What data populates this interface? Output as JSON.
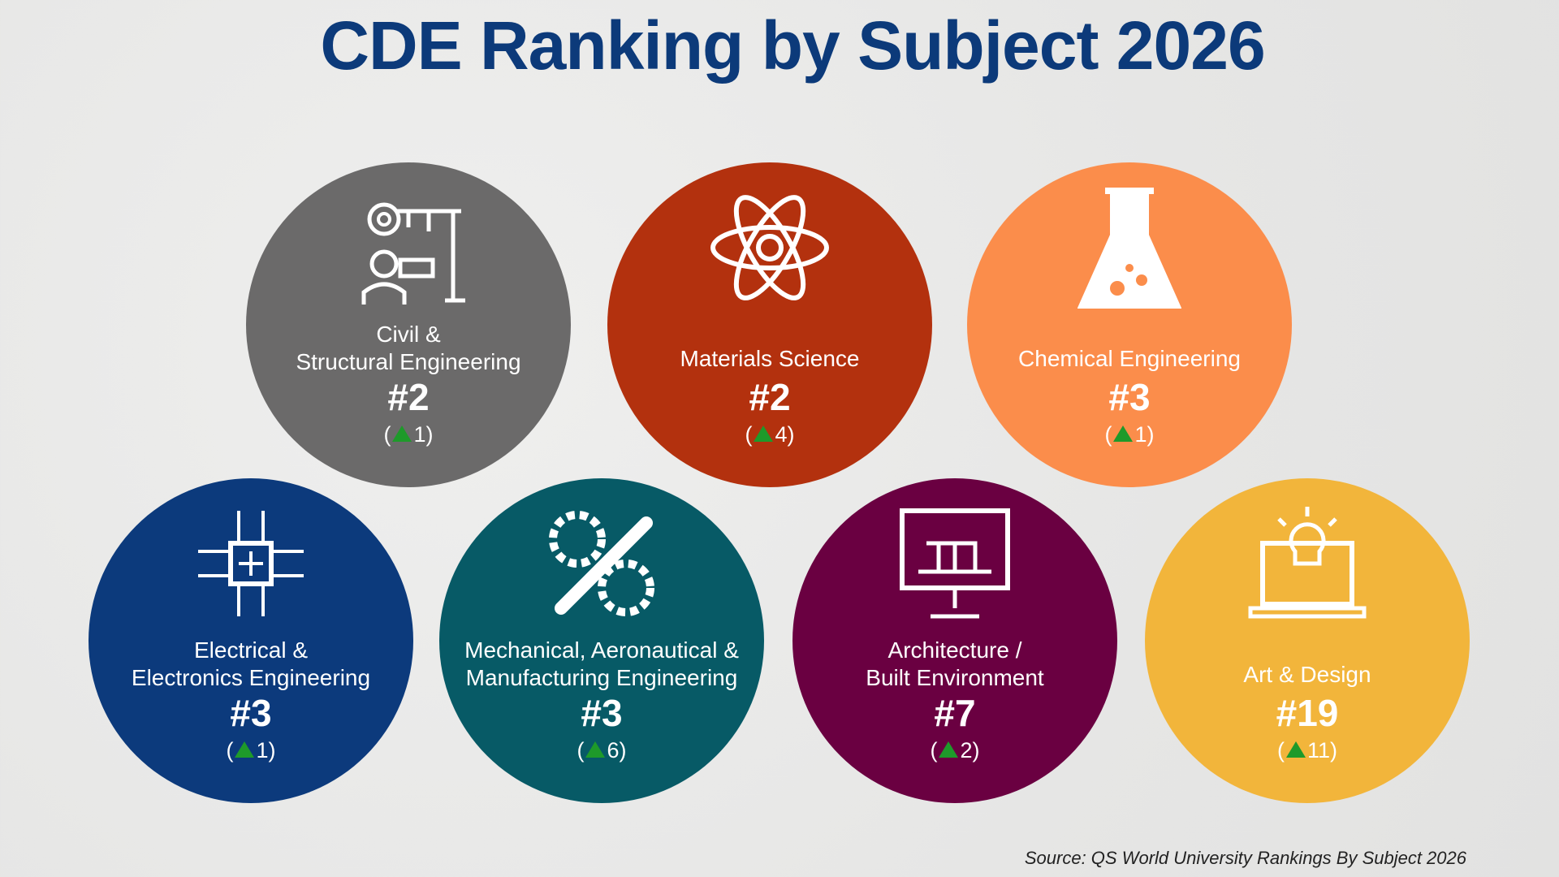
{
  "title": "CDE Ranking by Subject 2026",
  "subjects": [
    {
      "label1": "Civil &",
      "label2": "Structural Engineering",
      "rank": "#2",
      "change": "1",
      "color": "#6b6a6a",
      "icon": "construction-engineer-icon"
    },
    {
      "label1": "",
      "label2": "Materials Science",
      "rank": "#2",
      "change": "4",
      "color": "#b3310e",
      "icon": "atom-icon"
    },
    {
      "label1": "",
      "label2": "Chemical Engineering",
      "rank": "#3",
      "change": "1",
      "color": "#fb8d4b",
      "icon": "flask-icon"
    },
    {
      "label1": "Electrical &",
      "label2": "Electronics Engineering",
      "rank": "#3",
      "change": "1",
      "color": "#0c3a7c",
      "icon": "circuit-chip-icon"
    },
    {
      "label1": "Mechanical, Aeronautical &",
      "label2": "Manufacturing Engineering",
      "rank": "#3",
      "change": "6",
      "color": "#075a66",
      "icon": "gear-wrench-icon"
    },
    {
      "label1": "Architecture /",
      "label2": "Built Environment",
      "rank": "#7",
      "change": "2",
      "color": "#6a0041",
      "icon": "architecture-monitor-icon"
    },
    {
      "label1": "",
      "label2": "Art & Design",
      "rank": "#19",
      "change": "11",
      "color": "#f2b53b",
      "icon": "lightbulb-laptop-icon"
    }
  ],
  "source": "Source: QS World University Rankings By Subject 2026"
}
